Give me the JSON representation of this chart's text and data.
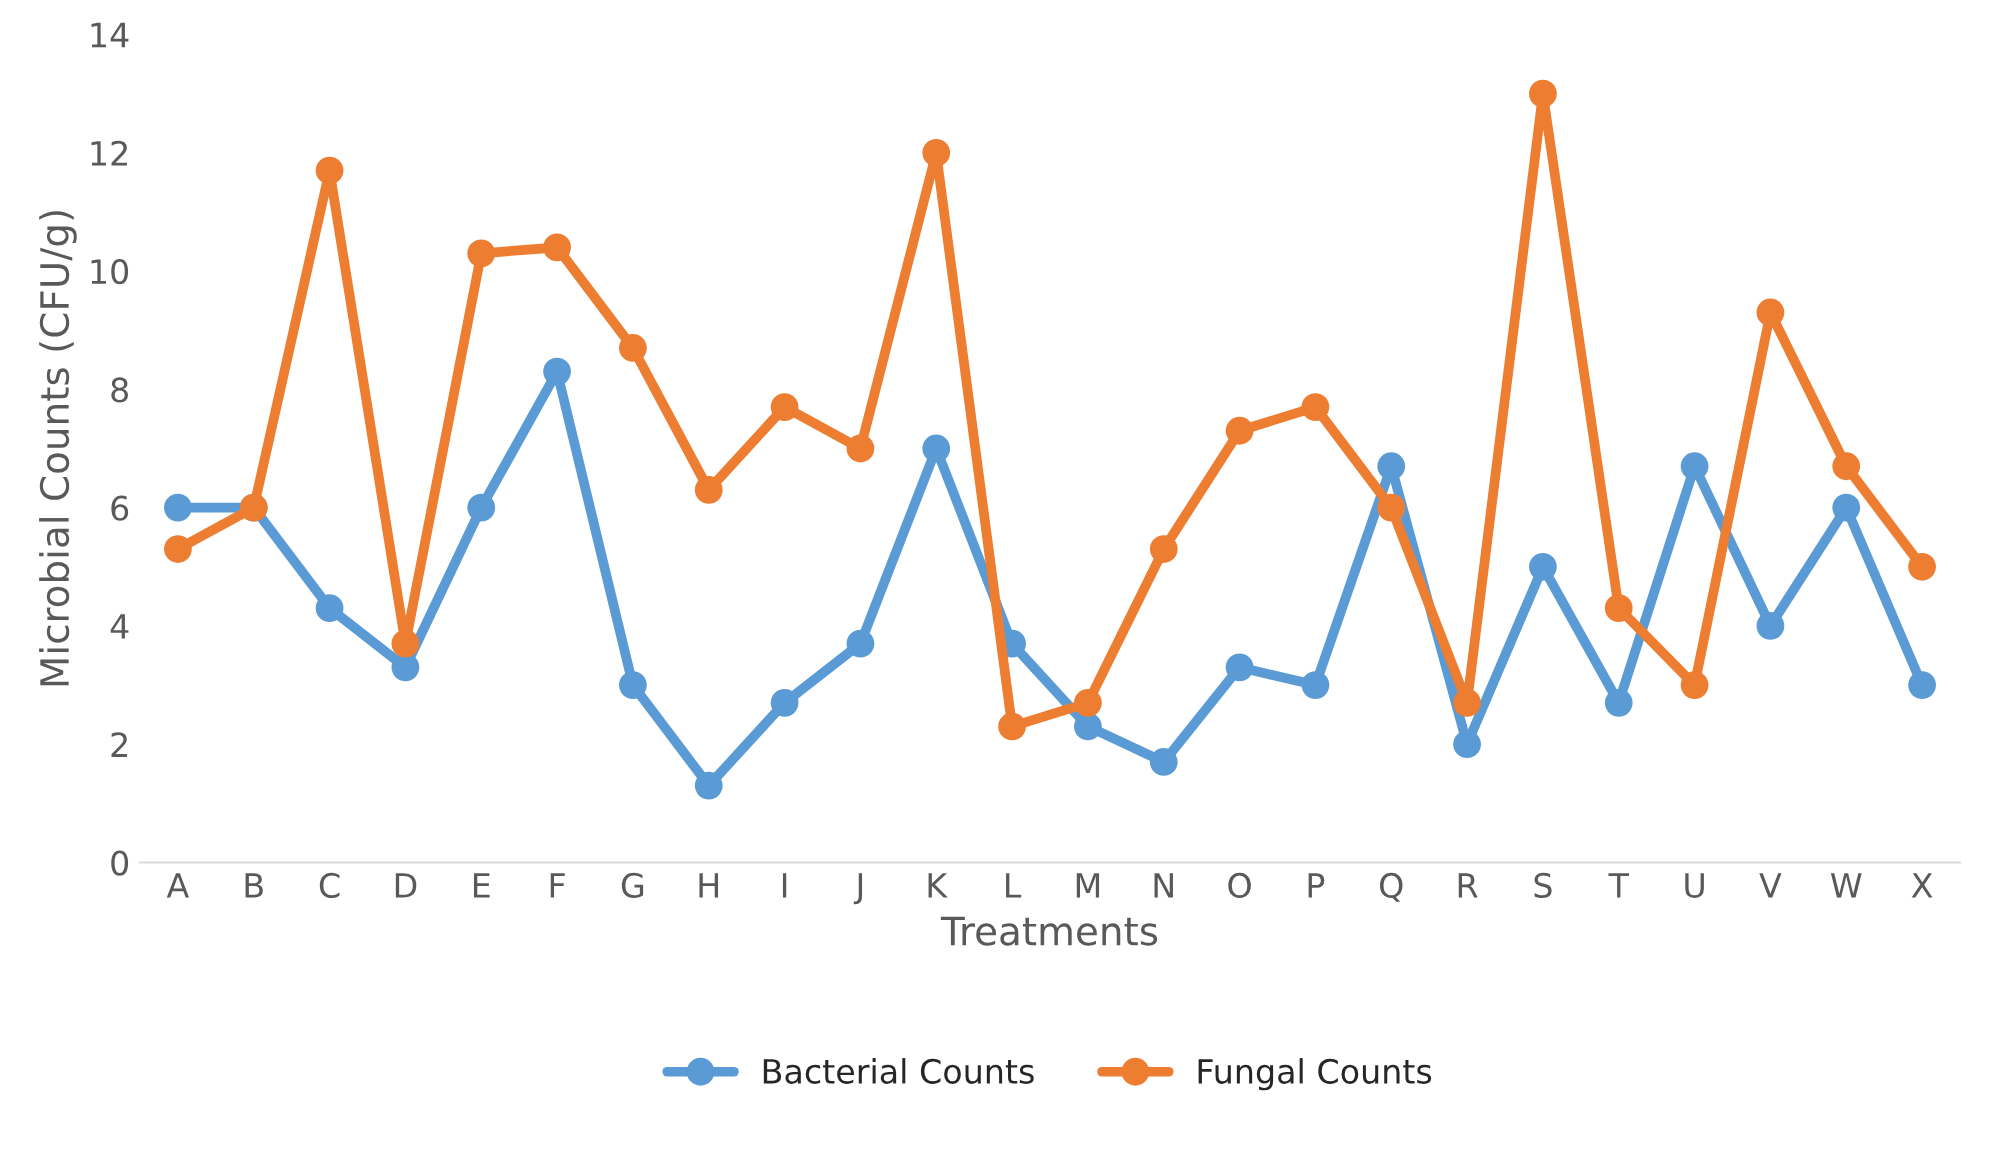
{
  "chart_data": {
    "type": "line",
    "xlabel": "Treatments",
    "ylabel": "Microbial Counts (CFU/g)",
    "categories": [
      "A",
      "B",
      "C",
      "D",
      "E",
      "F",
      "G",
      "H",
      "I",
      "J",
      "K",
      "L",
      "M",
      "N",
      "O",
      "P",
      "Q",
      "R",
      "S",
      "T",
      "U",
      "V",
      "W",
      "X"
    ],
    "series": [
      {
        "name": "Bacterial Counts",
        "color": "#5b9bd5",
        "values": [
          6,
          6,
          4.3,
          3.3,
          6,
          8.3,
          3,
          1.3,
          2.7,
          3.7,
          7,
          3.7,
          2.3,
          1.7,
          3.3,
          3,
          6.7,
          2,
          5,
          2.7,
          6.7,
          4,
          6,
          3
        ]
      },
      {
        "name": "Fungal Counts",
        "color": "#ed7d31",
        "values": [
          5.3,
          6,
          11.7,
          3.7,
          10.3,
          10.4,
          8.7,
          6.3,
          7.7,
          7,
          12,
          2.3,
          2.7,
          5.3,
          7.3,
          7.7,
          6,
          2.7,
          13,
          4.3,
          3,
          9.3,
          6.7,
          5
        ]
      }
    ],
    "ylim": [
      0,
      14
    ],
    "yticks": [
      0,
      2,
      4,
      6,
      8,
      10,
      12,
      14
    ],
    "grid": false,
    "legend": "bottom",
    "marker": "circle",
    "line_style": "solid"
  }
}
